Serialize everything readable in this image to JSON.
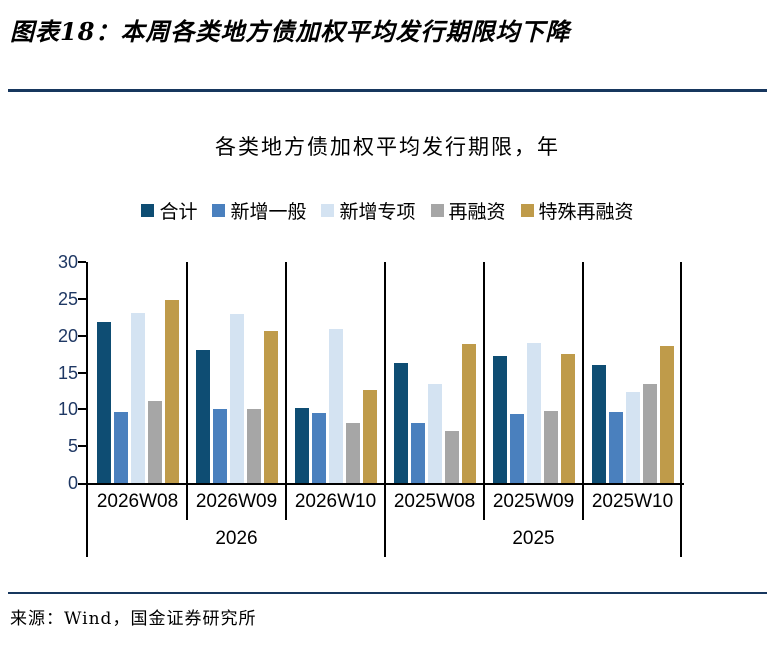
{
  "header": {
    "title": "图表18：本周各类地方债加权平均发行期限均下降"
  },
  "chart": {
    "subtitle": "各类地方债加权平均发行期限，年"
  },
  "chart_data": {
    "type": "bar",
    "title": "各类地方债加权平均发行期限，年",
    "categories": [
      "2026W08",
      "2026W09",
      "2026W10",
      "2025W08",
      "2025W09",
      "2025W10"
    ],
    "category_groups": [
      {
        "label": "2026",
        "span": 3
      },
      {
        "label": "2025",
        "span": 3
      }
    ],
    "series": [
      {
        "name": "合计",
        "color": "#0E4D73",
        "values": [
          21.9,
          18.1,
          10.2,
          16.3,
          17.3,
          16.0
        ]
      },
      {
        "name": "新增一般",
        "color": "#4A80BE",
        "values": [
          9.6,
          10.1,
          9.5,
          8.2,
          9.4,
          9.7
        ]
      },
      {
        "name": "新增专项",
        "color": "#D4E3F2",
        "values": [
          23.1,
          22.9,
          20.9,
          13.4,
          19.0,
          12.4
        ]
      },
      {
        "name": "再融资",
        "color": "#A6A6A6",
        "values": [
          11.1,
          10.1,
          8.2,
          7.1,
          9.8,
          13.4
        ]
      },
      {
        "name": "特殊再融资",
        "color": "#BF9B4A",
        "values": [
          24.9,
          20.6,
          12.6,
          18.9,
          17.5,
          18.6
        ]
      }
    ],
    "ylim": [
      0,
      30
    ],
    "ytick_step": 5,
    "yticks": [
      0,
      5,
      10,
      15,
      20,
      25,
      30
    ],
    "legend_position": "top",
    "grid": false,
    "axis_color": "#000000",
    "tick_label_color": "#1F3864"
  },
  "footer": {
    "source": "来源：Wind，国金证券研究所"
  },
  "colors": {
    "accent_rule": "#17375E"
  }
}
